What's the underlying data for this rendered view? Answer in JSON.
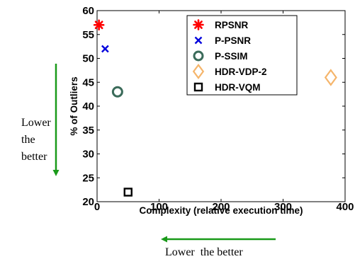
{
  "chart_data": {
    "type": "scatter",
    "title": "",
    "xlabel": "Complexity (relative execution time)",
    "ylabel": "% of Outliers",
    "xlim": [
      0,
      400
    ],
    "ylim": [
      20,
      60
    ],
    "xticks": [
      0,
      100,
      200,
      300,
      400
    ],
    "yticks": [
      20,
      25,
      30,
      35,
      40,
      45,
      50,
      55,
      60
    ],
    "grid": false,
    "legend_position": "top-right",
    "series": [
      {
        "name": "RPSNR",
        "marker": "asterisk",
        "color": "#ff0000",
        "x": [
          3
        ],
        "y": [
          57
        ]
      },
      {
        "name": "P-PSNR",
        "marker": "x",
        "color": "#0000dd",
        "x": [
          13
        ],
        "y": [
          52
        ]
      },
      {
        "name": "P-SSIM",
        "marker": "circle",
        "color": "#3b6b5a",
        "x": [
          33
        ],
        "y": [
          43
        ]
      },
      {
        "name": "HDR-VDP-2",
        "marker": "diamond",
        "color": "#f5b56b",
        "x": [
          377
        ],
        "y": [
          46
        ]
      },
      {
        "name": "HDR-VQM",
        "marker": "square",
        "color": "#000000",
        "x": [
          50
        ],
        "y": [
          22
        ]
      }
    ]
  },
  "annotations": {
    "vertical_note": [
      "Lower",
      "the",
      "better"
    ],
    "horizontal_note": "Lower  the better",
    "arrow_color": "#1a9a1a"
  }
}
